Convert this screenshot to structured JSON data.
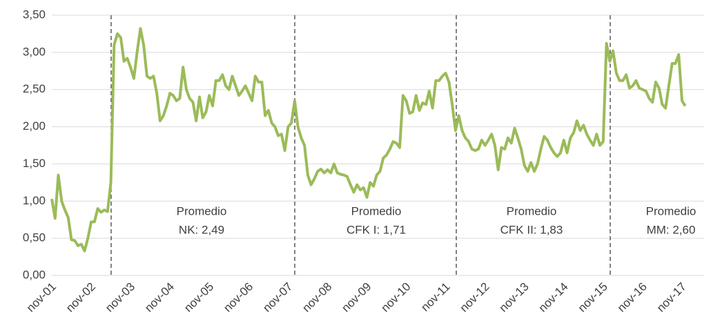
{
  "chart_data": {
    "type": "line",
    "categories": [
      "nov-01",
      null,
      null,
      null,
      null,
      null,
      null,
      null,
      null,
      null,
      null,
      null,
      "nov-02",
      null,
      null,
      null,
      null,
      null,
      null,
      null,
      null,
      null,
      null,
      null,
      "nov-03",
      null,
      null,
      null,
      null,
      null,
      null,
      null,
      null,
      null,
      null,
      null,
      "nov-04",
      null,
      null,
      null,
      null,
      null,
      null,
      null,
      null,
      null,
      null,
      null,
      "nov-05",
      null,
      null,
      null,
      null,
      null,
      null,
      null,
      null,
      null,
      null,
      null,
      "nov-06",
      null,
      null,
      null,
      null,
      null,
      null,
      null,
      null,
      null,
      null,
      null,
      "nov-07",
      null,
      null,
      null,
      null,
      null,
      null,
      null,
      null,
      null,
      null,
      null,
      "nov-08",
      null,
      null,
      null,
      null,
      null,
      null,
      null,
      null,
      null,
      null,
      null,
      "nov-09",
      null,
      null,
      null,
      null,
      null,
      null,
      null,
      null,
      null,
      null,
      null,
      "nov-10",
      null,
      null,
      null,
      null,
      null,
      null,
      null,
      null,
      null,
      null,
      null,
      "nov-11",
      null,
      null,
      null,
      null,
      null,
      null,
      null,
      null,
      null,
      null,
      null,
      "nov-12",
      null,
      null,
      null,
      null,
      null,
      null,
      null,
      null,
      null,
      null,
      null,
      "nov-13",
      null,
      null,
      null,
      null,
      null,
      null,
      null,
      null,
      null,
      null,
      null,
      "nov-14",
      null,
      null,
      null,
      null,
      null,
      null,
      null,
      null,
      null,
      null,
      null,
      "nov-15",
      null,
      null,
      null,
      null,
      null,
      null,
      null,
      null,
      null,
      null,
      null,
      "nov-16",
      null,
      null,
      null,
      null,
      null,
      null,
      null,
      null,
      null,
      null,
      null,
      "nov-17",
      null
    ],
    "values": [
      1.03,
      0.77,
      1.35,
      1.0,
      0.88,
      0.78,
      0.48,
      0.47,
      0.4,
      0.42,
      0.33,
      0.5,
      0.72,
      0.72,
      0.9,
      0.85,
      0.88,
      0.86,
      1.25,
      3.1,
      3.25,
      3.2,
      2.88,
      2.92,
      2.8,
      2.65,
      3.0,
      3.32,
      3.1,
      2.68,
      2.65,
      2.68,
      2.45,
      2.08,
      2.15,
      2.28,
      2.45,
      2.42,
      2.35,
      2.38,
      2.8,
      2.5,
      2.38,
      2.33,
      2.08,
      2.4,
      2.12,
      2.2,
      2.42,
      2.28,
      2.62,
      2.62,
      2.7,
      2.55,
      2.5,
      2.68,
      2.55,
      2.42,
      2.48,
      2.55,
      2.45,
      2.35,
      2.68,
      2.6,
      2.6,
      2.15,
      2.22,
      2.05,
      2.0,
      1.88,
      1.9,
      1.68,
      2.0,
      2.05,
      2.35,
      2.0,
      1.85,
      1.75,
      1.35,
      1.22,
      1.3,
      1.4,
      1.43,
      1.38,
      1.42,
      1.38,
      1.5,
      1.38,
      1.36,
      1.35,
      1.33,
      1.22,
      1.12,
      1.22,
      1.15,
      1.18,
      1.05,
      1.25,
      1.2,
      1.35,
      1.4,
      1.58,
      1.62,
      1.7,
      1.8,
      1.78,
      1.72,
      2.42,
      2.35,
      2.18,
      2.2,
      2.42,
      2.22,
      2.32,
      2.3,
      2.48,
      2.25,
      2.62,
      2.62,
      2.68,
      2.72,
      2.6,
      2.3,
      1.95,
      2.15,
      1.95,
      1.85,
      1.8,
      1.7,
      1.68,
      1.7,
      1.82,
      1.75,
      1.82,
      1.9,
      1.75,
      1.42,
      1.72,
      1.7,
      1.85,
      1.78,
      1.98,
      1.85,
      1.7,
      1.48,
      1.4,
      1.52,
      1.4,
      1.5,
      1.7,
      1.87,
      1.82,
      1.72,
      1.65,
      1.6,
      1.65,
      1.82,
      1.65,
      1.85,
      1.92,
      2.08,
      1.95,
      2.02,
      1.9,
      1.82,
      1.75,
      1.9,
      1.75,
      1.8,
      3.12,
      2.88,
      3.02,
      2.72,
      2.62,
      2.62,
      2.7,
      2.52,
      2.55,
      2.62,
      2.52,
      2.5,
      2.48,
      2.38,
      2.33,
      2.6,
      2.52,
      2.3,
      2.25,
      2.55,
      2.85,
      2.85,
      2.97,
      2.35,
      2.28
    ],
    "color": "#9bbb59",
    "ylim": [
      0,
      3.5
    ],
    "yticks": [
      {
        "value": 0,
        "label": "0,00"
      },
      {
        "value": 0.5,
        "label": "0,50"
      },
      {
        "value": 1,
        "label": "1,00"
      },
      {
        "value": 1.5,
        "label": "1,50"
      },
      {
        "value": 2,
        "label": "2,00"
      },
      {
        "value": 2.5,
        "label": "2,50"
      },
      {
        "value": 3,
        "label": "3,00"
      },
      {
        "value": 3.5,
        "label": "3,50"
      }
    ],
    "grid": true,
    "annotations": [
      [
        "Promedio",
        "NK: 2,49"
      ],
      [
        "Promedio",
        "CFK I: 1,71"
      ],
      [
        "Promedio",
        "CFK II: 1,83"
      ],
      [
        "Promedio",
        "MM: 2,60"
      ]
    ]
  }
}
